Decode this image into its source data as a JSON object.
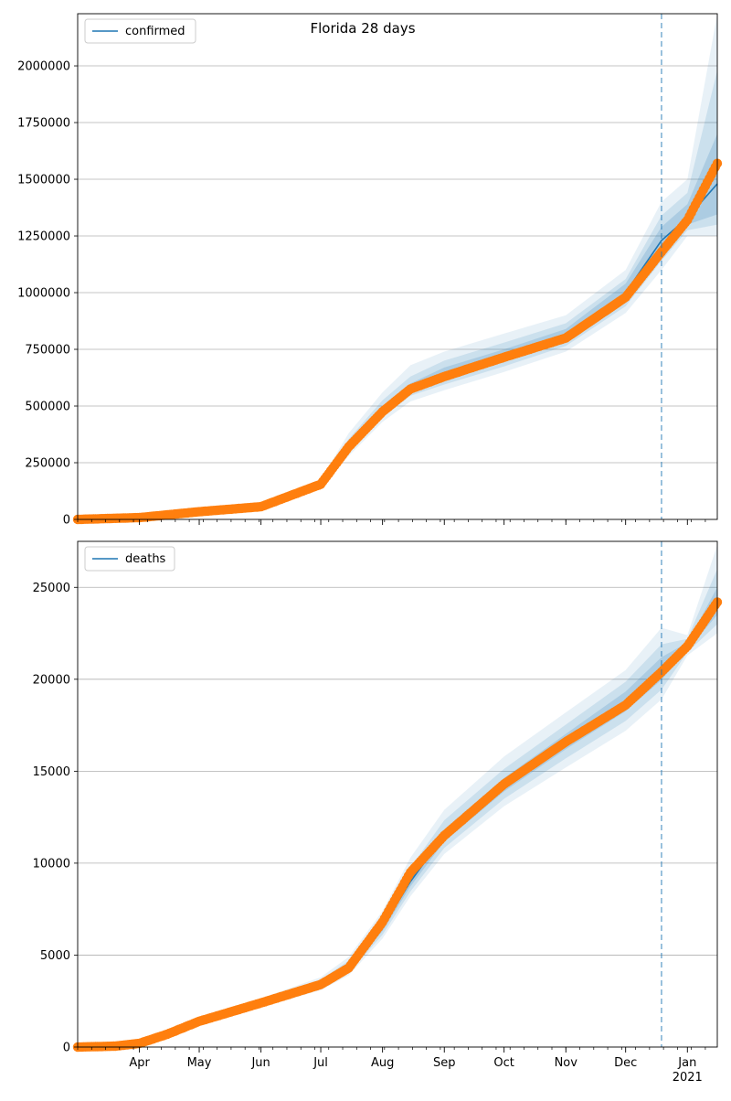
{
  "figure": {
    "title": "Florida 28 days",
    "background": "#ffffff"
  },
  "colors": {
    "fit_line": "#1f77b4",
    "band": "#1f77b4",
    "observed": "#ff7f0e",
    "vline": "#1f77b4",
    "grid": "#b0b0b0"
  },
  "chart_data": [
    {
      "type": "line",
      "subtype": "cumulative fit with uncertainty bands and observed points",
      "title": "Florida 28 days",
      "xlabel": "",
      "ylabel": "",
      "x_axis": {
        "type": "date",
        "range": [
          "2020-03-01",
          "2021-01-16"
        ],
        "tick_labels_shown": false
      },
      "ylim": [
        0,
        2230000
      ],
      "yticks": [
        0,
        250000,
        500000,
        750000,
        1000000,
        1250000,
        1500000,
        1750000,
        2000000
      ],
      "ytick_labels": [
        "0",
        "250000",
        "500000",
        "750000",
        "1000000",
        "1250000",
        "1500000",
        "1750000",
        "2000000"
      ],
      "grid": "horizontal",
      "legend": {
        "position": "top-left",
        "entries": [
          "confirmed"
        ]
      },
      "forecast_start": "2020-12-19",
      "series": [
        {
          "name": "confirmed",
          "role": "fitted median",
          "x": [
            "2020-03-01",
            "2020-04-01",
            "2020-05-01",
            "2020-06-01",
            "2020-07-01",
            "2020-07-15",
            "2020-08-01",
            "2020-08-15",
            "2020-09-01",
            "2020-10-01",
            "2020-11-01",
            "2020-12-01",
            "2020-12-19",
            "2021-01-01",
            "2021-01-16"
          ],
          "values": [
            0,
            10000,
            35000,
            58000,
            160000,
            320000,
            480000,
            580000,
            640000,
            720000,
            810000,
            1000000,
            1230000,
            1330000,
            1480000
          ]
        },
        {
          "role": "observed",
          "x": [
            "2020-03-01",
            "2020-04-01",
            "2020-05-01",
            "2020-06-01",
            "2020-07-01",
            "2020-07-15",
            "2020-08-01",
            "2020-08-15",
            "2020-09-01",
            "2020-10-01",
            "2020-11-01",
            "2020-12-01",
            "2020-12-19",
            "2021-01-01",
            "2021-01-16"
          ],
          "values": [
            0,
            8000,
            34000,
            56000,
            155000,
            320000,
            475000,
            575000,
            630000,
            715000,
            800000,
            980000,
            1180000,
            1320000,
            1570000
          ]
        }
      ],
      "bands": {
        "x": [
          "2020-03-01",
          "2020-04-01",
          "2020-05-01",
          "2020-06-01",
          "2020-07-01",
          "2020-07-15",
          "2020-08-01",
          "2020-08-15",
          "2020-09-01",
          "2020-10-01",
          "2020-11-01",
          "2020-12-01",
          "2020-12-19",
          "2021-01-01",
          "2021-01-16"
        ],
        "levels": [
          {
            "lower": [
              0,
              8000,
              30000,
              53000,
              145000,
              280000,
              430000,
              520000,
              570000,
              650000,
              740000,
              910000,
              1100000,
              1250000,
              1250000
            ],
            "upper": [
              0,
              12000,
              40000,
              63000,
              175000,
              380000,
              560000,
              680000,
              740000,
              820000,
              900000,
              1100000,
              1400000,
              1500000,
              2230000
            ]
          },
          {
            "lower": [
              0,
              8500,
              31500,
              54500,
              150000,
              295000,
              450000,
              545000,
              595000,
              675000,
              765000,
              940000,
              1140000,
              1275000,
              1300000
            ],
            "upper": [
              0,
              11500,
              38500,
              61500,
              170000,
              355000,
              525000,
              630000,
              700000,
              780000,
              865000,
              1060000,
              1340000,
              1440000,
              1980000
            ]
          },
          {
            "lower": [
              0,
              9000,
              33000,
              56000,
              155000,
              305000,
              462000,
              562000,
              615000,
              695000,
              785000,
              965000,
              1180000,
              1300000,
              1345000
            ],
            "upper": [
              0,
              11000,
              37000,
              60000,
              165000,
              340000,
              500000,
              600000,
              670000,
              750000,
              840000,
              1040000,
              1290000,
              1390000,
              1700000
            ]
          }
        ]
      }
    },
    {
      "type": "line",
      "subtype": "cumulative fit with uncertainty bands and observed points",
      "title": "",
      "xlabel": "",
      "ylabel": "",
      "x_axis": {
        "type": "date",
        "range": [
          "2020-03-01",
          "2021-01-16"
        ],
        "tick_labels": [
          "Apr",
          "May",
          "Jun",
          "Jul",
          "Aug",
          "Sep",
          "Oct",
          "Nov",
          "Dec",
          "Jan"
        ],
        "year_label": "2021"
      },
      "ylim": [
        0,
        27500
      ],
      "yticks": [
        0,
        5000,
        10000,
        15000,
        20000,
        25000
      ],
      "ytick_labels": [
        "0",
        "5000",
        "10000",
        "15000",
        "20000",
        "25000"
      ],
      "grid": "horizontal",
      "legend": {
        "position": "top-left",
        "entries": [
          "deaths"
        ]
      },
      "forecast_start": "2020-12-19",
      "series": [
        {
          "name": "deaths",
          "role": "fitted median",
          "x": [
            "2020-03-01",
            "2020-03-20",
            "2020-04-01",
            "2020-04-15",
            "2020-05-01",
            "2020-06-01",
            "2020-07-01",
            "2020-07-15",
            "2020-08-01",
            "2020-08-15",
            "2020-09-01",
            "2020-10-01",
            "2020-11-01",
            "2020-12-01",
            "2020-12-19",
            "2021-01-01",
            "2021-01-16"
          ],
          "values": [
            0,
            50,
            200,
            700,
            1400,
            2400,
            3400,
            4300,
            6500,
            9000,
            11500,
            14300,
            16700,
            18800,
            20500,
            21800,
            24000
          ]
        },
        {
          "role": "observed",
          "x": [
            "2020-03-01",
            "2020-03-20",
            "2020-04-01",
            "2020-04-15",
            "2020-05-01",
            "2020-06-01",
            "2020-07-01",
            "2020-07-15",
            "2020-08-01",
            "2020-08-15",
            "2020-09-01",
            "2020-10-01",
            "2020-11-01",
            "2020-12-01",
            "2020-12-19",
            "2021-01-01",
            "2021-01-16"
          ],
          "values": [
            0,
            50,
            200,
            700,
            1400,
            2400,
            3400,
            4300,
            6800,
            9500,
            11500,
            14300,
            16600,
            18600,
            20400,
            21800,
            24200
          ]
        }
      ],
      "bands": {
        "x": [
          "2020-03-01",
          "2020-03-20",
          "2020-04-01",
          "2020-04-15",
          "2020-05-01",
          "2020-06-01",
          "2020-07-01",
          "2020-07-15",
          "2020-08-01",
          "2020-08-15",
          "2020-09-01",
          "2020-10-01",
          "2020-11-01",
          "2020-12-01",
          "2020-12-19",
          "2021-01-01",
          "2021-01-16"
        ],
        "levels": [
          {
            "lower": [
              0,
              40,
              170,
              600,
              1250,
              2150,
              3100,
              3900,
              5900,
              8200,
              10500,
              13100,
              15200,
              17200,
              18900,
              21300,
              22500
            ],
            "upper": [
              0,
              60,
              230,
              800,
              1550,
              2650,
              3800,
              4900,
              7400,
              10300,
              12900,
              15800,
              18200,
              20500,
              22800,
              22400,
              27300
            ]
          },
          {
            "lower": [
              0,
              43,
              180,
              633,
              1300,
              2233,
              3200,
              4033,
              6100,
              8467,
              10833,
              13500,
              15700,
              17733,
              19433,
              21467,
              23000
            ],
            "upper": [
              0,
              57,
              220,
              767,
              1500,
              2567,
              3667,
              4700,
              7000,
              9767,
              12333,
              15133,
              17533,
              19867,
              21900,
              22200,
              26000
            ]
          },
          {
            "lower": [
              0,
              47,
              190,
              667,
              1350,
              2317,
              3300,
              4167,
              6300,
              8733,
              11167,
              13900,
              16200,
              18267,
              19967,
              21633,
              23500
            ],
            "upper": [
              0,
              53,
              210,
              733,
              1450,
              2483,
              3533,
              4500,
              6700,
              9267,
              11833,
              14633,
              17033,
              19333,
              21200,
              22000,
              25000
            ]
          }
        ]
      }
    }
  ]
}
